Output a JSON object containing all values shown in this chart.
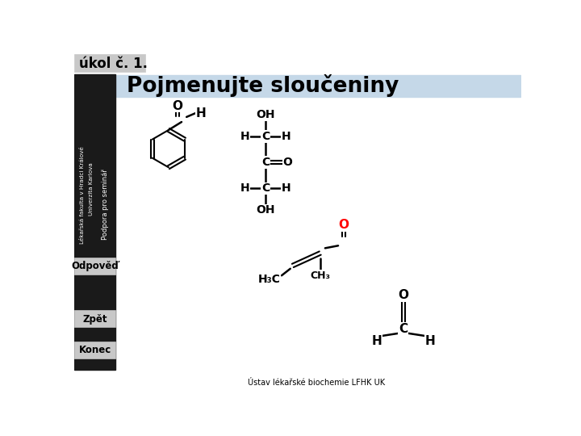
{
  "title": "úkol č. 1.",
  "subtitle": "Pojmenujte sloučeniny",
  "footer": "Ústav lékařské biochemie LFHK UK",
  "bg_main": "#ffffff",
  "bg_header": "#c5d8e8",
  "bg_title_box": "#c8c8c8",
  "bg_sidebar": "#1a1a1a",
  "btn_color": "#c8c8c8",
  "sidebar_text1": "Lékařská fakulta v Hradci Králové",
  "sidebar_text2": "Univerzita Karlova",
  "sidebar_text3": "Podpora pro seminář",
  "btn_labels": [
    "Odpověď",
    "Zpět",
    "Konec"
  ],
  "red_color": "#ff0000"
}
